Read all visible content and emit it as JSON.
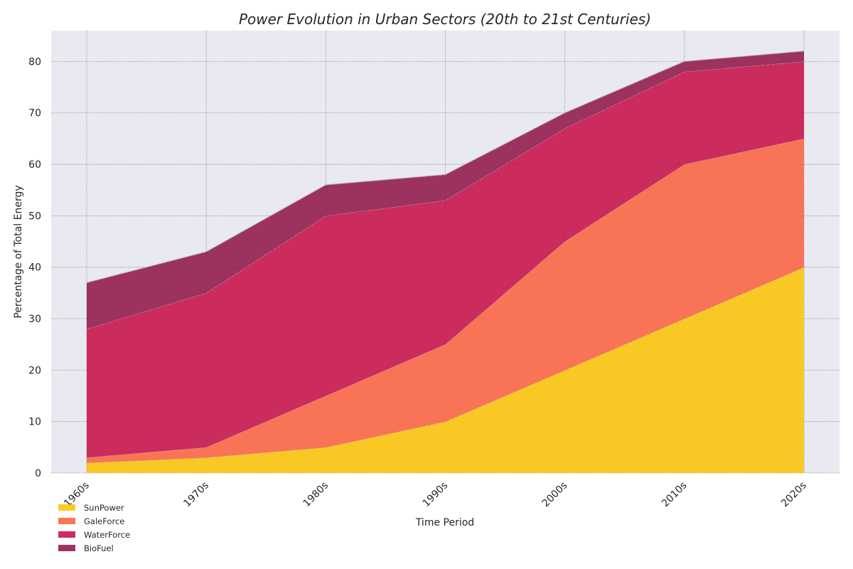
{
  "chart_data": {
    "type": "area",
    "stacked": true,
    "title": "Power Evolution in Urban Sectors (20th to 21st Centuries)",
    "xlabel": "Time Period",
    "ylabel": "Percentage of Total Energy",
    "categories": [
      "1960s",
      "1970s",
      "1980s",
      "1990s",
      "2000s",
      "2010s",
      "2020s"
    ],
    "ylim": [
      0,
      86
    ],
    "yticks": [
      0,
      10,
      20,
      30,
      40,
      50,
      60,
      70,
      80
    ],
    "grid": true,
    "legend_position": "bottom-left",
    "series": [
      {
        "name": "SunPower",
        "color": "#fbc40e",
        "values": [
          2,
          3,
          5,
          10,
          20,
          30,
          40
        ]
      },
      {
        "name": "GaleForce",
        "color": "#fb6745",
        "values": [
          1,
          2,
          10,
          15,
          25,
          30,
          25
        ]
      },
      {
        "name": "WaterForce",
        "color": "#c8164c",
        "values": [
          25,
          30,
          35,
          28,
          22,
          18,
          15
        ]
      },
      {
        "name": "BioFuel",
        "color": "#921e50",
        "values": [
          9,
          8,
          6,
          5,
          3,
          2,
          2
        ]
      }
    ]
  }
}
